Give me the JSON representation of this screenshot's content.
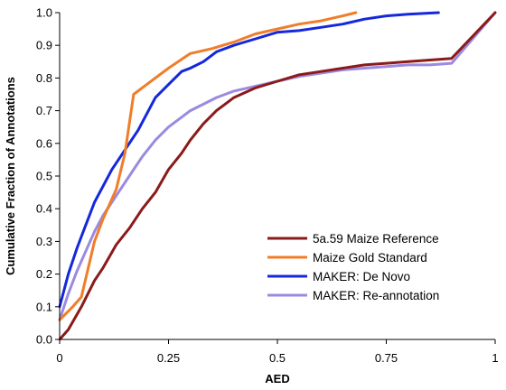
{
  "chart_data": {
    "type": "line",
    "title": "",
    "xlabel": "AED",
    "ylabel": "Cumulative Fraction of Annotations",
    "xlim": [
      0,
      1
    ],
    "ylim": [
      0,
      1
    ],
    "x_ticks": [
      "0",
      "0.25",
      "0.5",
      "0.75",
      "1"
    ],
    "x_tick_values": [
      0,
      0.25,
      0.5,
      0.75,
      1
    ],
    "y_ticks": [
      "0.0",
      "0.1",
      "0.2",
      "0.3",
      "0.4",
      "0.5",
      "0.6",
      "0.7",
      "0.8",
      "0.9",
      "1.0"
    ],
    "y_tick_values": [
      0,
      0.1,
      0.2,
      0.3,
      0.4,
      0.5,
      0.6,
      0.7,
      0.8,
      0.9,
      1.0
    ],
    "grid": false,
    "legend_position": "bottom-right",
    "series": [
      {
        "name": "5a.59 Maize Reference",
        "color": "#8b1a1a",
        "points": [
          [
            0,
            0
          ],
          [
            0.02,
            0.03
          ],
          [
            0.05,
            0.1
          ],
          [
            0.08,
            0.18
          ],
          [
            0.1,
            0.22
          ],
          [
            0.13,
            0.29
          ],
          [
            0.16,
            0.34
          ],
          [
            0.19,
            0.4
          ],
          [
            0.22,
            0.45
          ],
          [
            0.25,
            0.52
          ],
          [
            0.28,
            0.57
          ],
          [
            0.3,
            0.61
          ],
          [
            0.33,
            0.66
          ],
          [
            0.36,
            0.7
          ],
          [
            0.4,
            0.74
          ],
          [
            0.45,
            0.77
          ],
          [
            0.5,
            0.79
          ],
          [
            0.55,
            0.81
          ],
          [
            0.6,
            0.82
          ],
          [
            0.65,
            0.83
          ],
          [
            0.7,
            0.84
          ],
          [
            0.75,
            0.845
          ],
          [
            0.8,
            0.85
          ],
          [
            0.85,
            0.855
          ],
          [
            0.9,
            0.86
          ],
          [
            1.0,
            1.0
          ]
        ]
      },
      {
        "name": "Maize Gold Standard",
        "color": "#f07d2a",
        "points": [
          [
            0,
            0.06
          ],
          [
            0.03,
            0.1
          ],
          [
            0.05,
            0.13
          ],
          [
            0.08,
            0.3
          ],
          [
            0.1,
            0.37
          ],
          [
            0.13,
            0.46
          ],
          [
            0.15,
            0.57
          ],
          [
            0.17,
            0.75
          ],
          [
            0.2,
            0.78
          ],
          [
            0.25,
            0.83
          ],
          [
            0.3,
            0.875
          ],
          [
            0.35,
            0.89
          ],
          [
            0.4,
            0.91
          ],
          [
            0.45,
            0.935
          ],
          [
            0.5,
            0.95
          ],
          [
            0.55,
            0.965
          ],
          [
            0.6,
            0.975
          ],
          [
            0.65,
            0.99
          ],
          [
            0.68,
            1.0
          ]
        ]
      },
      {
        "name": "MAKER: De Novo",
        "color": "#1428dc",
        "points": [
          [
            0,
            0.1
          ],
          [
            0.02,
            0.2
          ],
          [
            0.04,
            0.28
          ],
          [
            0.06,
            0.35
          ],
          [
            0.08,
            0.42
          ],
          [
            0.1,
            0.47
          ],
          [
            0.12,
            0.52
          ],
          [
            0.14,
            0.56
          ],
          [
            0.16,
            0.6
          ],
          [
            0.18,
            0.64
          ],
          [
            0.2,
            0.69
          ],
          [
            0.22,
            0.74
          ],
          [
            0.25,
            0.78
          ],
          [
            0.28,
            0.82
          ],
          [
            0.3,
            0.83
          ],
          [
            0.33,
            0.85
          ],
          [
            0.36,
            0.88
          ],
          [
            0.4,
            0.9
          ],
          [
            0.45,
            0.92
          ],
          [
            0.5,
            0.94
          ],
          [
            0.55,
            0.945
          ],
          [
            0.6,
            0.955
          ],
          [
            0.65,
            0.965
          ],
          [
            0.7,
            0.98
          ],
          [
            0.75,
            0.99
          ],
          [
            0.8,
            0.995
          ],
          [
            0.87,
            1.0
          ]
        ]
      },
      {
        "name": "MAKER: Re-annotation",
        "color": "#9b8ae0",
        "points": [
          [
            0,
            0.06
          ],
          [
            0.02,
            0.14
          ],
          [
            0.04,
            0.21
          ],
          [
            0.06,
            0.27
          ],
          [
            0.08,
            0.33
          ],
          [
            0.1,
            0.38
          ],
          [
            0.13,
            0.44
          ],
          [
            0.16,
            0.5
          ],
          [
            0.19,
            0.56
          ],
          [
            0.22,
            0.61
          ],
          [
            0.25,
            0.65
          ],
          [
            0.28,
            0.68
          ],
          [
            0.3,
            0.7
          ],
          [
            0.33,
            0.72
          ],
          [
            0.36,
            0.74
          ],
          [
            0.4,
            0.76
          ],
          [
            0.45,
            0.775
          ],
          [
            0.5,
            0.79
          ],
          [
            0.55,
            0.805
          ],
          [
            0.6,
            0.815
          ],
          [
            0.65,
            0.825
          ],
          [
            0.7,
            0.83
          ],
          [
            0.75,
            0.835
          ],
          [
            0.8,
            0.84
          ],
          [
            0.85,
            0.84
          ],
          [
            0.9,
            0.845
          ],
          [
            1.0,
            1.0
          ]
        ]
      }
    ]
  }
}
